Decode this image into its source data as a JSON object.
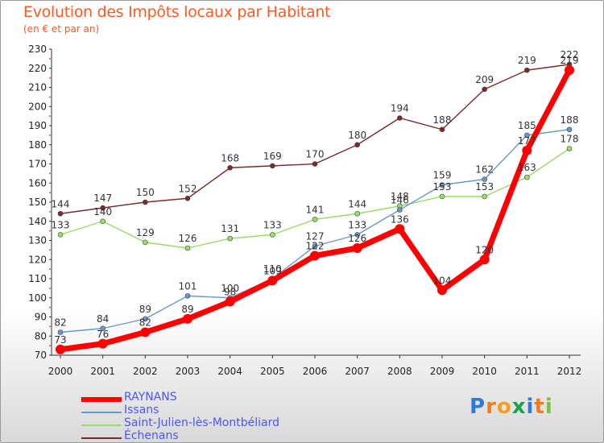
{
  "title": "Evolution des Impôts locaux par Habitant",
  "subtitle": "(en € et par an)",
  "logo": {
    "letters": [
      "P",
      "r",
      "o",
      "x",
      "i",
      "t",
      "i"
    ],
    "colors": [
      "#2e7bd6",
      "#f07c1d",
      "#f5a01a",
      "#1aa34a",
      "#2e7bd6",
      "#f07c1d",
      "#7ac142"
    ]
  },
  "chart_data": {
    "type": "line",
    "categories": [
      "2000",
      "2001",
      "2002",
      "2003",
      "2004",
      "2005",
      "2006",
      "2007",
      "2008",
      "2009",
      "2010",
      "2011",
      "2012"
    ],
    "ylim": [
      70,
      230
    ],
    "yticks": [
      70,
      80,
      90,
      100,
      110,
      120,
      130,
      140,
      150,
      160,
      170,
      180,
      190,
      200,
      210,
      220,
      230
    ],
    "grid": false,
    "series": [
      {
        "name": "Échenans",
        "color": "#7a2a2a",
        "values": [
          144,
          147,
          150,
          152,
          168,
          169,
          170,
          180,
          194,
          188,
          209,
          219,
          222
        ],
        "labels": [
          "144",
          "147",
          "150",
          "152",
          "168",
          "169",
          "170",
          "180",
          "194",
          "188",
          "209",
          "219",
          "222"
        ]
      },
      {
        "name": "Saint-Julien-lès-Montbéliard",
        "color": "#99dd66",
        "values": [
          133,
          140,
          129,
          126,
          131,
          133,
          141,
          144,
          148,
          153,
          153,
          163,
          178
        ],
        "labels": [
          "133",
          "140",
          "129",
          "126",
          "131",
          "133",
          "141",
          "144",
          "148",
          "153",
          "153",
          "163",
          "178"
        ]
      },
      {
        "name": "Issans",
        "color": "#6699cc",
        "values": [
          82,
          84,
          89,
          101,
          100,
          110,
          127,
          133,
          146,
          159,
          162,
          185,
          188
        ],
        "labels": [
          "82",
          "84",
          "89",
          "101",
          "100",
          "110",
          "127",
          "133",
          "146",
          "159",
          "162",
          "185",
          "188"
        ]
      },
      {
        "name": "RAYNANS",
        "color": "#ff0000",
        "values": [
          73,
          76,
          82,
          89,
          98,
          109,
          122,
          126,
          136,
          104,
          120,
          177,
          219
        ],
        "labels": [
          "73",
          "76",
          "82",
          "89",
          "98",
          "109",
          "122",
          "126",
          "136",
          "104",
          "120",
          "177",
          "219"
        ]
      }
    ]
  },
  "legend": [
    {
      "name": "RAYNANS",
      "color": "#ff0000",
      "thickness": 6
    },
    {
      "name": "Issans",
      "color": "#6699cc",
      "thickness": 2
    },
    {
      "name": "Saint-Julien-lès-Montbéliard",
      "color": "#99dd66",
      "thickness": 2
    },
    {
      "name": "Échenans",
      "color": "#7a2a2a",
      "thickness": 2
    }
  ]
}
